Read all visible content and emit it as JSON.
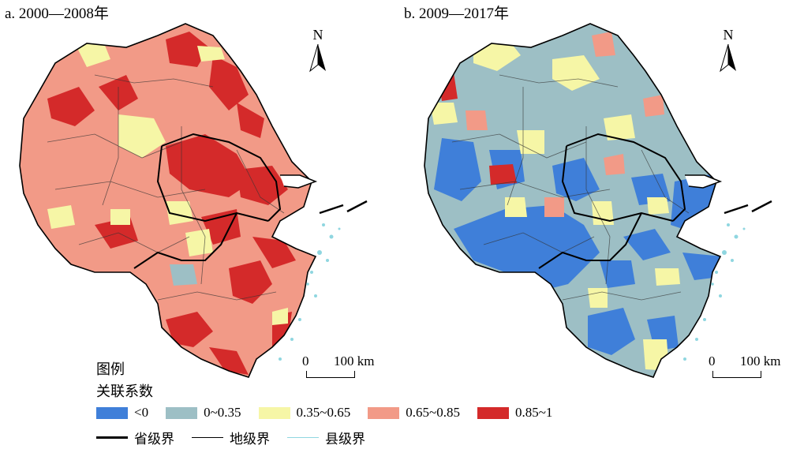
{
  "panels": {
    "a_title": "a. 2000—2008年",
    "b_title": "b. 2009—2017年"
  },
  "north_label": "N",
  "scale": {
    "zero": "0",
    "hundred": "100 km"
  },
  "legend": {
    "title": "图例",
    "subtitle": "关联系数",
    "classes": [
      {
        "label": "<0",
        "color": "#3f7fd9"
      },
      {
        "label": "0~0.35",
        "color": "#9dbfc5"
      },
      {
        "label": "0.35~0.65",
        "color": "#f6f6a6"
      },
      {
        "label": "0.65~0.85",
        "color": "#f29a87"
      },
      {
        "label": "0.85~1",
        "color": "#d42a2a"
      }
    ],
    "lines": [
      {
        "label": "省级界",
        "color": "#000000"
      },
      {
        "label": "地级界",
        "color": "#000000"
      },
      {
        "label": "县级界",
        "color": "#8fd6e0"
      }
    ]
  }
}
